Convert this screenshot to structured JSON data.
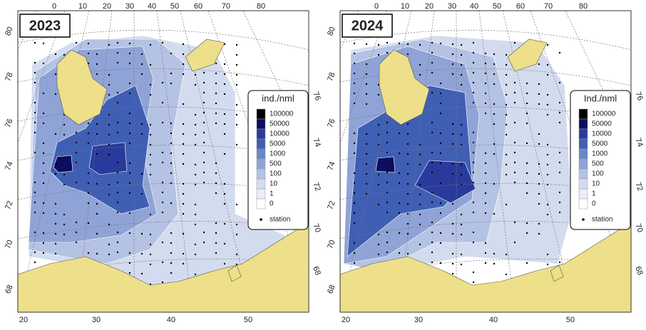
{
  "panels": [
    {
      "title": "2023",
      "top_labels": [
        0,
        10,
        20,
        30,
        40,
        50,
        60,
        70,
        80
      ],
      "bottom_labels": [
        20,
        30,
        40,
        50
      ],
      "left_labels": [
        80,
        78,
        76,
        74,
        72,
        70,
        68
      ],
      "right_labels": [
        76,
        74,
        72,
        70,
        68
      ],
      "legend": {
        "title": "ind./nml",
        "levels": [
          "100000",
          "50000",
          "10000",
          "5000",
          "1000",
          "500",
          "100",
          "10",
          "1",
          "0"
        ],
        "colors": [
          "#000000",
          "#0d0d5e",
          "#2a3a9c",
          "#3f5fb5",
          "#6b86c9",
          "#8fa3d6",
          "#b4c2e4",
          "#d3dcef",
          "#e9edf7",
          "#ffffff"
        ],
        "station": "station"
      }
    },
    {
      "title": "2024",
      "top_labels": [
        0,
        10,
        20,
        30,
        40,
        50,
        60,
        70,
        80
      ],
      "bottom_labels": [
        20,
        30,
        40,
        50
      ],
      "left_labels": [
        80,
        78,
        76,
        74,
        72,
        70,
        68
      ],
      "right_labels": [
        76,
        74,
        72,
        70,
        68
      ],
      "legend": {
        "title": "Ind./nml",
        "levels": [
          "100000",
          "50000",
          "10000",
          "5000",
          "1000",
          "500",
          "100",
          "10",
          "1",
          "0"
        ],
        "colors": [
          "#000000",
          "#0d0d5e",
          "#2a3a9c",
          "#3f5fb5",
          "#6b86c9",
          "#8fa3d6",
          "#b4c2e4",
          "#d3dcef",
          "#e9edf7",
          "#ffffff"
        ],
        "station": "station"
      }
    }
  ]
}
